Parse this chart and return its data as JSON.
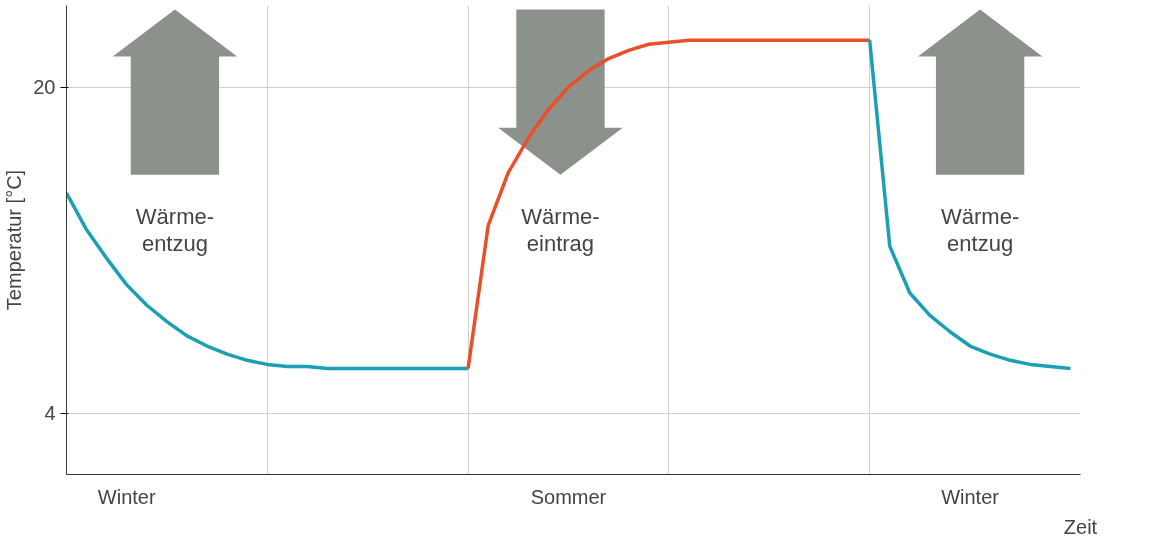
{
  "chart_data": {
    "type": "line",
    "xlabel": "Zeit",
    "ylabel": "Temperatur [°C]",
    "categories": [
      null,
      null,
      null,
      "Winter",
      null,
      null,
      null,
      null,
      null,
      null,
      null,
      null,
      null,
      null,
      null,
      null,
      null,
      null,
      null,
      null,
      null,
      null,
      null,
      null,
      null,
      "Sommer",
      null,
      null,
      null,
      null,
      null,
      null,
      null,
      null,
      null,
      null,
      null,
      null,
      null,
      null,
      null,
      null,
      null,
      null,
      null,
      "Winter",
      null,
      null,
      null,
      null,
      null
    ],
    "ylim": [
      1,
      24
    ],
    "yticks": [
      4,
      20
    ],
    "grid": true,
    "marker": "none",
    "line_style": "solid",
    "series": [
      {
        "color": "#1a9fb5",
        "values": [
          14.8,
          13.0,
          11.6,
          10.3,
          9.3,
          8.5,
          7.8,
          7.3,
          6.9,
          6.6,
          6.4,
          6.3,
          6.3,
          6.2,
          6.2,
          6.2,
          6.2,
          6.2,
          6.2,
          6.2,
          6.2,
          null,
          null,
          null,
          null,
          null,
          null,
          null,
          null,
          null,
          null,
          null,
          null,
          null,
          null,
          null,
          null,
          null,
          null,
          null,
          null,
          null,
          null,
          null,
          null,
          null,
          null,
          null,
          null,
          null,
          null
        ]
      },
      {
        "color": "#e8502a",
        "values": [
          null,
          null,
          null,
          null,
          null,
          null,
          null,
          null,
          null,
          null,
          null,
          null,
          null,
          null,
          null,
          null,
          null,
          null,
          null,
          null,
          6.2,
          13.2,
          15.8,
          17.5,
          18.9,
          20.0,
          20.8,
          21.4,
          21.8,
          22.1,
          22.2,
          22.3,
          22.3,
          22.3,
          22.3,
          22.3,
          22.3,
          22.3,
          22.3,
          22.3,
          22.3,
          null,
          null,
          null,
          null,
          null,
          null,
          null,
          null,
          null,
          null
        ]
      },
      {
        "color": "#1a9fb5",
        "values": [
          null,
          null,
          null,
          null,
          null,
          null,
          null,
          null,
          null,
          null,
          null,
          null,
          null,
          null,
          null,
          null,
          null,
          null,
          null,
          null,
          null,
          null,
          null,
          null,
          null,
          null,
          null,
          null,
          null,
          null,
          null,
          null,
          null,
          null,
          null,
          null,
          null,
          null,
          null,
          null,
          22.3,
          12.2,
          9.9,
          8.8,
          8.0,
          7.3,
          6.9,
          6.6,
          6.4,
          6.3,
          6.2
        ]
      }
    ],
    "annotations": [
      "Wärme-\nentzug",
      "Wärme-\neintrag",
      "Wärme-\nentzug"
    ]
  }
}
